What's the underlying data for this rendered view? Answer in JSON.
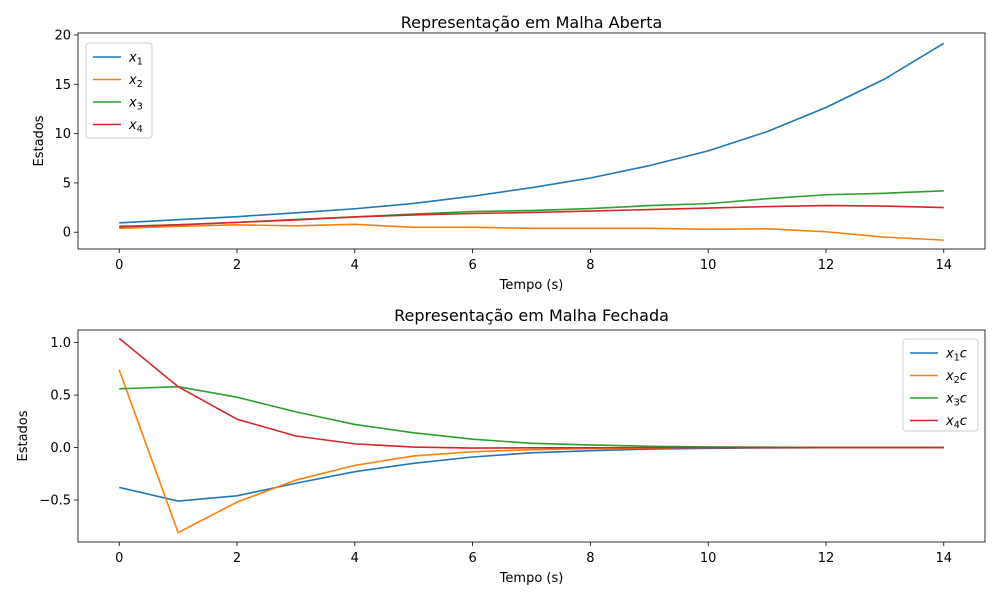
{
  "chart_data": [
    {
      "type": "line",
      "title": "Representação em Malha Aberta",
      "xlabel": "Tempo (s)",
      "ylabel": "Estados",
      "xlim": [
        -0.7,
        14.7
      ],
      "ylim": [
        -1.7,
        20.2
      ],
      "xticks": [
        0,
        2,
        4,
        6,
        8,
        10,
        12,
        14
      ],
      "yticks": [
        0,
        5,
        10,
        15,
        20
      ],
      "ytick_labels": [
        "0",
        "5",
        "10",
        "15",
        "20"
      ],
      "legend_position": "upper left",
      "grid": false,
      "x": [
        0,
        1,
        2,
        3,
        4,
        5,
        6,
        7,
        8,
        9,
        10,
        11,
        12,
        13,
        14
      ],
      "series": [
        {
          "name": "x",
          "sub": "1",
          "suffix": "",
          "color": "#1f77b4",
          "values": [
            0.95,
            1.27,
            1.58,
            1.97,
            2.38,
            2.92,
            3.65,
            4.52,
            5.5,
            6.75,
            8.25,
            10.2,
            12.65,
            15.55,
            19.15
          ]
        },
        {
          "name": "x",
          "sub": "2",
          "suffix": "",
          "color": "#ff7f0e",
          "values": [
            0.4,
            0.6,
            0.75,
            0.65,
            0.8,
            0.5,
            0.5,
            0.4,
            0.4,
            0.4,
            0.3,
            0.35,
            0.05,
            -0.5,
            -0.8
          ]
        },
        {
          "name": "x",
          "sub": "3",
          "suffix": "",
          "color": "#2ca02c",
          "values": [
            0.6,
            0.75,
            1.0,
            1.3,
            1.55,
            1.85,
            2.1,
            2.2,
            2.4,
            2.7,
            2.9,
            3.4,
            3.8,
            3.95,
            4.2
          ]
        },
        {
          "name": "x",
          "sub": "4",
          "suffix": "",
          "color": "#d62728",
          "values": [
            0.55,
            0.75,
            1.0,
            1.25,
            1.55,
            1.75,
            1.9,
            2.0,
            2.15,
            2.3,
            2.45,
            2.6,
            2.7,
            2.65,
            2.5
          ]
        }
      ]
    },
    {
      "type": "line",
      "title": "Representação em Malha Fechada",
      "xlabel": "Tempo (s)",
      "ylabel": "Estados",
      "xlim": [
        -0.7,
        14.7
      ],
      "ylim": [
        -0.9,
        1.12
      ],
      "xticks": [
        0,
        2,
        4,
        6,
        8,
        10,
        12,
        14
      ],
      "yticks": [
        1.0,
        0.5,
        0.0,
        -0.5
      ],
      "ytick_labels": [
        "1.0",
        "0.5",
        "0.0",
        "−0.5"
      ],
      "legend_position": "upper right",
      "grid": false,
      "x": [
        0,
        1,
        2,
        3,
        4,
        5,
        6,
        7,
        8,
        9,
        10,
        11,
        12,
        13,
        14
      ],
      "series": [
        {
          "name": "x",
          "sub": "1",
          "suffix": "c",
          "color": "#1f77b4",
          "values": [
            -0.38,
            -0.51,
            -0.46,
            -0.34,
            -0.23,
            -0.15,
            -0.09,
            -0.05,
            -0.03,
            -0.015,
            -0.008,
            -0.004,
            -0.002,
            -0.001,
            0.0
          ]
        },
        {
          "name": "x",
          "sub": "2",
          "suffix": "c",
          "color": "#ff7f0e",
          "values": [
            0.74,
            -0.81,
            -0.52,
            -0.31,
            -0.17,
            -0.08,
            -0.04,
            -0.02,
            -0.01,
            -0.005,
            0.0,
            0.0,
            0.0,
            0.0,
            0.0
          ]
        },
        {
          "name": "x",
          "sub": "3",
          "suffix": "c",
          "color": "#2ca02c",
          "values": [
            0.56,
            0.58,
            0.48,
            0.34,
            0.22,
            0.14,
            0.08,
            0.04,
            0.025,
            0.012,
            0.006,
            0.003,
            0.0015,
            0.0007,
            0.0
          ]
        },
        {
          "name": "x",
          "sub": "4",
          "suffix": "c",
          "color": "#d62728",
          "values": [
            1.04,
            0.58,
            0.27,
            0.11,
            0.035,
            0.005,
            -0.005,
            -0.003,
            -0.002,
            -0.001,
            0.0,
            0.0,
            0.0,
            0.0,
            0.0
          ]
        }
      ]
    }
  ]
}
